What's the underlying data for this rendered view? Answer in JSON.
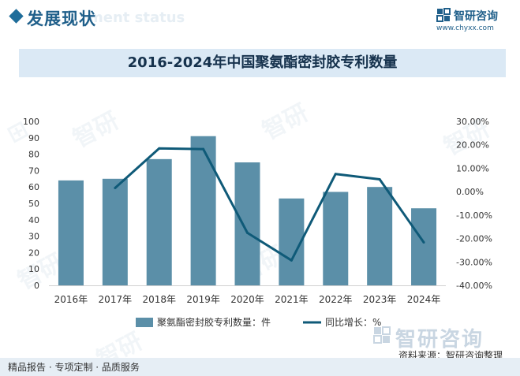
{
  "header": {
    "section_title": "发展现状",
    "section_subtitle": "ment status"
  },
  "brand": {
    "name": "智研咨询",
    "url": "www.chyxx.com"
  },
  "chart_data": {
    "type": "bar",
    "title": "2016-2024年中国聚氨酯密封胶专利数量",
    "categories": [
      "2016年",
      "2017年",
      "2018年",
      "2019年",
      "2020年",
      "2021年",
      "2022年",
      "2023年",
      "2024年"
    ],
    "series": [
      {
        "name": "聚氨酯密封胶专利数量：件",
        "type": "bar",
        "axis": "left",
        "color": "#5b8fa8",
        "values": [
          64,
          65,
          77,
          91,
          75,
          53,
          57,
          60,
          47
        ]
      },
      {
        "name": "同比增长：%",
        "type": "line",
        "axis": "right",
        "color": "#0f5a78",
        "values": [
          null,
          1.56,
          18.46,
          18.18,
          -17.58,
          -29.33,
          7.55,
          5.26,
          -21.67
        ]
      }
    ],
    "left_axis": {
      "ylim": [
        0,
        100
      ],
      "ticks": [
        "0",
        "10",
        "20",
        "30",
        "40",
        "50",
        "60",
        "70",
        "80",
        "90",
        "100"
      ]
    },
    "right_axis": {
      "ylim": [
        -40,
        30
      ],
      "ticks": [
        "-40.00%",
        "-30.00%",
        "-20.00%",
        "-10.00%",
        "0.00%",
        "10.00%",
        "20.00%",
        "30.00%"
      ]
    },
    "legend_position": "bottom",
    "grid": false
  },
  "bottom_brand": "智研咨询",
  "source_text": "资料来源：智研咨询整理",
  "footer_text": "精品报告 · 专项定制 · 品质服务"
}
